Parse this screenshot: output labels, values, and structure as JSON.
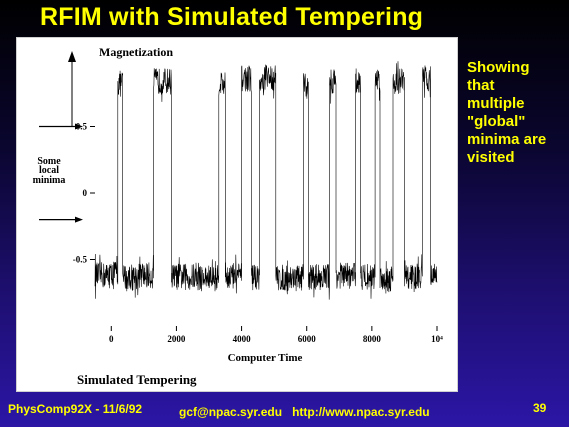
{
  "slide": {
    "title": "RFIM with Simulated Tempering",
    "side_note_lines": [
      "Showing",
      "that",
      "multiple",
      "\"global\"",
      "minima are",
      "visited"
    ],
    "footer_left": "PhysComp92X - 11/6/92",
    "footer_center": "gcf@npac.syr.edu   http://www.npac.syr.edu",
    "page_number": "39"
  },
  "colors": {
    "title_text": "#ffff00",
    "background_top": "#000000",
    "background_bottom": "#2b16a6",
    "plot_trace": "#000000",
    "panel": "#ffffff"
  },
  "chart_data": {
    "type": "line",
    "title": "Simulated Tempering",
    "ylabel": "Magnetization",
    "xlabel": "Computer Time",
    "x_ticks": [
      "0",
      "2000",
      "4000",
      "6000",
      "8000",
      "10⁴"
    ],
    "y_ticks": [
      "0.5",
      "0",
      "-0.5"
    ],
    "xlim": [
      -500,
      10000
    ],
    "ylim": [
      -1.0,
      1.0
    ],
    "annotation": {
      "lines": [
        "Some",
        "local",
        "minima"
      ],
      "arrow_targets_y": [
        0.5,
        -0.2
      ]
    },
    "grid": false,
    "series": [
      {
        "segments": [
          {
            "x0": -500,
            "x1": 0,
            "level": -0.62
          },
          {
            "x0": 0,
            "x1": 200,
            "level": -0.6
          },
          {
            "x0": 200,
            "x1": 350,
            "level": 0.82
          },
          {
            "x0": 350,
            "x1": 850,
            "level": -0.63
          },
          {
            "x0": 850,
            "x1": 1300,
            "level": -0.62
          },
          {
            "x0": 1300,
            "x1": 1850,
            "level": 0.84
          },
          {
            "x0": 1850,
            "x1": 2600,
            "level": -0.63
          },
          {
            "x0": 2600,
            "x1": 3300,
            "level": -0.64
          },
          {
            "x0": 3300,
            "x1": 3500,
            "level": 0.83
          },
          {
            "x0": 3500,
            "x1": 4000,
            "level": -0.62
          },
          {
            "x0": 4000,
            "x1": 4300,
            "level": 0.86
          },
          {
            "x0": 4300,
            "x1": 4550,
            "level": -0.63
          },
          {
            "x0": 4550,
            "x1": 4700,
            "level": 0.82
          },
          {
            "x0": 4700,
            "x1": 5050,
            "level": 0.87
          },
          {
            "x0": 5050,
            "x1": 5900,
            "level": -0.64
          },
          {
            "x0": 5900,
            "x1": 6050,
            "level": 0.8
          },
          {
            "x0": 6050,
            "x1": 6700,
            "level": -0.63
          },
          {
            "x0": 6700,
            "x1": 6900,
            "level": 0.84
          },
          {
            "x0": 6900,
            "x1": 7500,
            "level": -0.62
          },
          {
            "x0": 7500,
            "x1": 7650,
            "level": 0.84
          },
          {
            "x0": 7650,
            "x1": 8100,
            "level": -0.63
          },
          {
            "x0": 8100,
            "x1": 8250,
            "level": 0.86
          },
          {
            "x0": 8250,
            "x1": 8650,
            "level": -0.64
          },
          {
            "x0": 8650,
            "x1": 9000,
            "level": 0.84
          },
          {
            "x0": 9000,
            "x1": 9550,
            "level": -0.63
          },
          {
            "x0": 9550,
            "x1": 9800,
            "level": 0.86
          },
          {
            "x0": 9800,
            "x1": 10000,
            "level": -0.62
          }
        ],
        "noise_amplitude": 0.1
      }
    ]
  }
}
